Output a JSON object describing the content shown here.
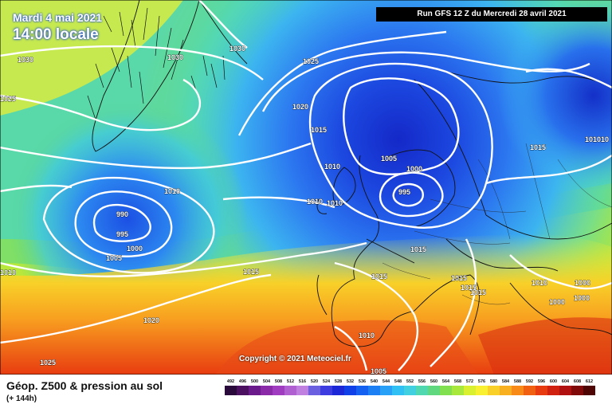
{
  "header": {
    "date": "Mardi 4 mai 2021",
    "local_time": "14:00 locale",
    "run": "Run GFS 12 Z du Mercredi 28 avril 2021"
  },
  "map": {
    "copyright": "Copyright © 2021 Meteociel.fr",
    "isobar_labels": [
      "1030",
      "1030",
      "1030",
      "1025",
      "1025",
      "1025",
      "1020",
      "1020",
      "1015",
      "1015",
      "1015",
      "1015",
      "1015",
      "1015",
      "1015",
      "1010",
      "1010",
      "1010",
      "1010",
      "1010",
      "1010",
      "1010",
      "1005",
      "1005",
      "1005",
      "1000",
      "1000",
      "1000",
      "1000",
      "1000",
      "995",
      "995",
      "990",
      "1015",
      "101010"
    ],
    "low_centers": [
      "995",
      "990"
    ]
  },
  "footer": {
    "product": "Géop. Z500 & pression au sol",
    "lead_time": "(+ 144h)",
    "scale_values": [
      "492",
      "496",
      "500",
      "504",
      "508",
      "512",
      "516",
      "520",
      "524",
      "528",
      "532",
      "536",
      "540",
      "544",
      "548",
      "552",
      "556",
      "560",
      "564",
      "568",
      "572",
      "576",
      "580",
      "584",
      "588",
      "592",
      "596",
      "600",
      "604",
      "608",
      "612"
    ],
    "scale_colors": [
      "#2a0a3a",
      "#4b1060",
      "#6a1a8a",
      "#8a2aa8",
      "#a03cc0",
      "#b060d0",
      "#c080e0",
      "#6a60e0",
      "#3c3ce0",
      "#1c28d8",
      "#1040e8",
      "#1460f0",
      "#1c80f4",
      "#28a0f8",
      "#30c0f4",
      "#40d0e0",
      "#50d8b0",
      "#60d880",
      "#80e050",
      "#a8e83c",
      "#d8f030",
      "#f8f030",
      "#f8d028",
      "#f8b020",
      "#f88a18",
      "#f06010",
      "#e83c10",
      "#d02010",
      "#b01010",
      "#800a0a",
      "#500505"
    ]
  }
}
